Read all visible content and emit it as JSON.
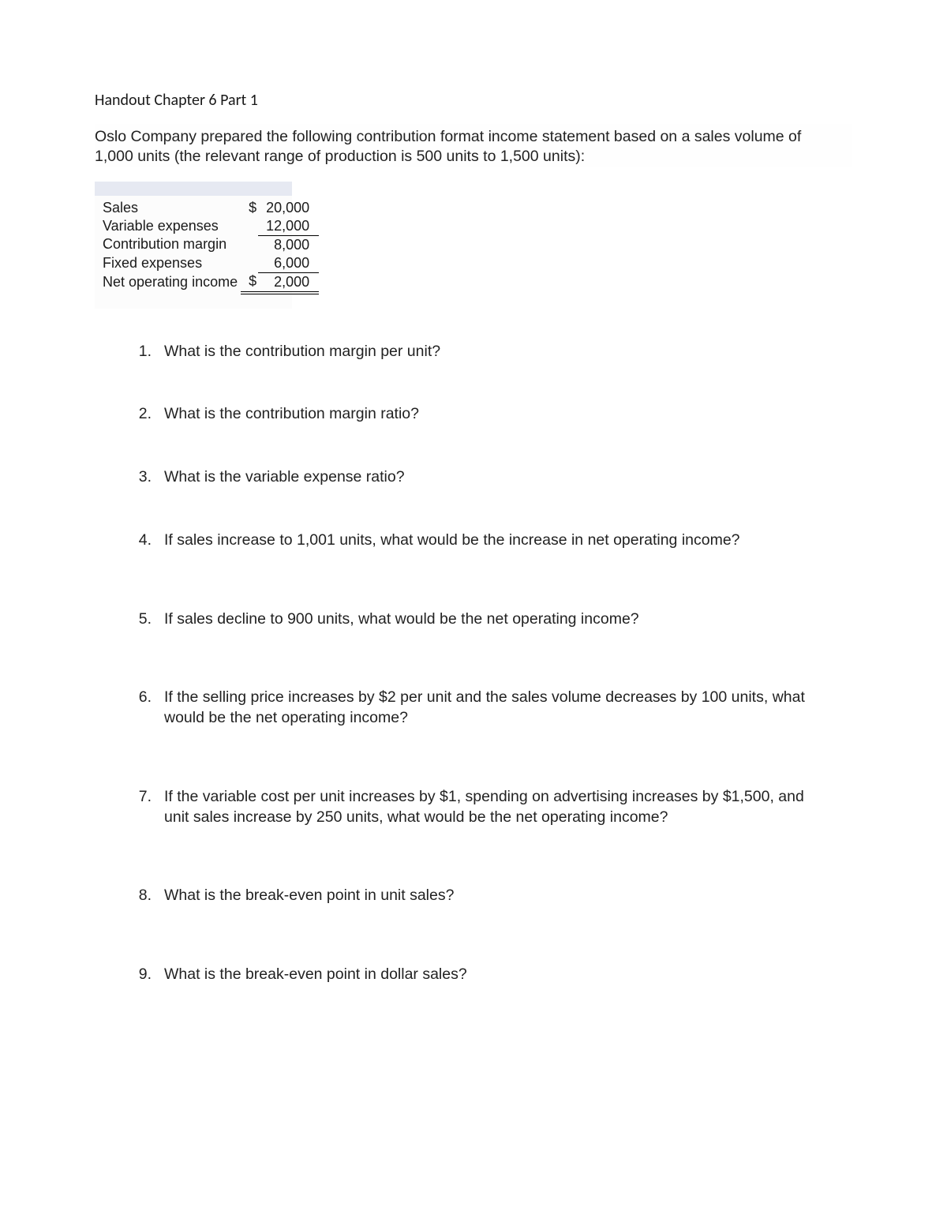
{
  "title": "Handout Chapter 6 Part 1",
  "intro": "Oslo Company prepared the following contribution format income statement based on a sales volume of 1,000 units (the relevant range of production is 500 units to 1,500 units):",
  "statement": {
    "rows": [
      {
        "label": "Sales",
        "currency": "$",
        "amount": "20,000"
      },
      {
        "label": "Variable expenses",
        "currency": "",
        "amount": "12,000"
      },
      {
        "label": "Contribution margin",
        "currency": "",
        "amount": "8,000"
      },
      {
        "label": "Fixed expenses",
        "currency": "",
        "amount": "6,000"
      },
      {
        "label": "Net operating income",
        "currency": "$",
        "amount": "2,000"
      }
    ]
  },
  "questions": [
    {
      "n": "1.",
      "text": "What is the contribution margin per unit?"
    },
    {
      "n": "2.",
      "text": "What is the contribution margin ratio?"
    },
    {
      "n": "3.",
      "text": "What is the variable expense ratio?"
    },
    {
      "n": "4.",
      "text": "If sales increase to 1,001 units, what would be the increase in net operating income?"
    },
    {
      "n": "5.",
      "text": "If sales decline to 900 units, what would be the net operating income?"
    },
    {
      "n": "6.",
      "text": "If the selling price increases by $2 per unit and the sales volume decreases by 100 units, what would be the net operating income?"
    },
    {
      "n": "7.",
      "text": "If the variable cost per unit increases by $1, spending on advertising increases by $1,500, and unit sales increase by 250 units, what would be the net operating income?"
    },
    {
      "n": "8.",
      "text": "What is the break-even point in unit sales?"
    },
    {
      "n": "9.",
      "text": "What is the break-even point in dollar sales?"
    }
  ],
  "colors": {
    "background": "#ffffff",
    "text": "#202020",
    "table_header_bar": "#e6e9f2",
    "table_bg": "#fcfcfc"
  },
  "typography": {
    "title_font": "Calibri",
    "body_font": "Arial",
    "title_size_pt": 15,
    "body_size_pt": 14
  }
}
